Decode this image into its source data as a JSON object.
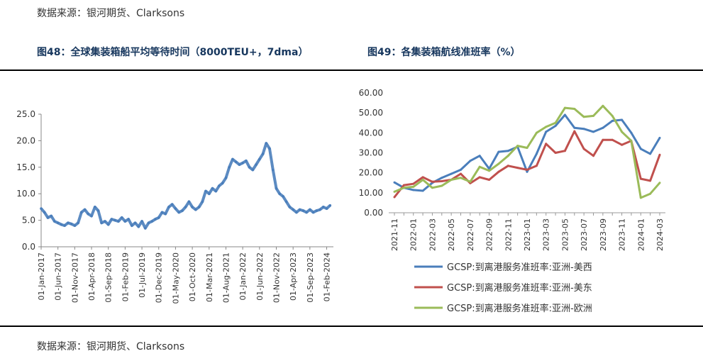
{
  "source_top": "数据来源：银河期货、Clarksons",
  "source_bottom": "数据来源：银河期货、Clarksons",
  "fig48": {
    "title": "图48：全球集装箱船平均等待时间（8000TEU+，7dma）"
  },
  "fig49": {
    "title": "图49：各集装箱航线准班率（%）"
  },
  "colors": {
    "title": "#17375e",
    "blue": "#4a7ebb",
    "red": "#c0504d",
    "green": "#9bbb59"
  },
  "chart_data": [
    {
      "type": "line",
      "title": "",
      "xlabel": "",
      "ylabel": "",
      "ylim": [
        0,
        25
      ],
      "yticks": [
        "0.0",
        "5.0",
        "10.0",
        "15.0",
        "20.0",
        "25.0"
      ],
      "xticks": [
        "01-Jan-2017",
        "01-Jun-2017",
        "01-Nov-2017",
        "01-Apr-2018",
        "01-Sep-2018",
        "01-Feb-2019",
        "01-Jul-2019",
        "01-Dec-2019",
        "01-May-2020",
        "01-Oct-2020",
        "01-Mar-2021",
        "01-Aug-2021",
        "01-Jan-2022",
        "01-Jun-2022",
        "01-Nov-2022",
        "01-Apr-2023",
        "01-Sep-2023",
        "01-Feb-2024"
      ],
      "grid": false,
      "series": [
        {
          "color": "#4a7ebb",
          "x": [
            "2017-01",
            "2017-02",
            "2017-03",
            "2017-04",
            "2017-05",
            "2017-06",
            "2017-07",
            "2017-08",
            "2017-09",
            "2017-10",
            "2017-11",
            "2017-12",
            "2018-01",
            "2018-02",
            "2018-03",
            "2018-04",
            "2018-05",
            "2018-06",
            "2018-07",
            "2018-08",
            "2018-09",
            "2018-10",
            "2018-11",
            "2018-12",
            "2019-01",
            "2019-02",
            "2019-03",
            "2019-04",
            "2019-05",
            "2019-06",
            "2019-07",
            "2019-08",
            "2019-09",
            "2019-10",
            "2019-11",
            "2019-12",
            "2020-01",
            "2020-02",
            "2020-03",
            "2020-04",
            "2020-05",
            "2020-06",
            "2020-07",
            "2020-08",
            "2020-09",
            "2020-10",
            "2020-11",
            "2020-12",
            "2021-01",
            "2021-02",
            "2021-03",
            "2021-04",
            "2021-05",
            "2021-06",
            "2021-07",
            "2021-08",
            "2021-09",
            "2021-10",
            "2021-11",
            "2021-12",
            "2022-01",
            "2022-02",
            "2022-03",
            "2022-04",
            "2022-05",
            "2022-06",
            "2022-07",
            "2022-08",
            "2022-09",
            "2022-10",
            "2022-11",
            "2022-12",
            "2023-01",
            "2023-02",
            "2023-03",
            "2023-04",
            "2023-05",
            "2023-06",
            "2023-07",
            "2023-08",
            "2023-09",
            "2023-10",
            "2023-11",
            "2023-12",
            "2024-01",
            "2024-02",
            "2024-03"
          ],
          "values": [
            7.2,
            6.5,
            5.5,
            5.8,
            4.8,
            4.5,
            4.2,
            4.0,
            4.5,
            4.3,
            4.0,
            4.5,
            6.5,
            7.0,
            6.2,
            5.8,
            7.5,
            6.8,
            4.5,
            4.8,
            4.2,
            5.2,
            5.0,
            4.8,
            5.5,
            4.8,
            5.2,
            4.0,
            4.5,
            3.8,
            4.8,
            3.5,
            4.5,
            4.8,
            5.2,
            5.5,
            6.5,
            6.2,
            7.5,
            8.0,
            7.2,
            6.5,
            6.8,
            7.5,
            8.5,
            7.5,
            7.0,
            7.5,
            8.5,
            10.5,
            10.0,
            11.0,
            10.5,
            11.5,
            12.0,
            13.0,
            15.0,
            16.5,
            16.0,
            15.5,
            15.8,
            16.2,
            15.0,
            14.5,
            15.5,
            16.5,
            17.5,
            19.5,
            18.5,
            14.5,
            11.0,
            10.0,
            9.5,
            8.5,
            7.5,
            7.0,
            6.5,
            7.0,
            6.8,
            6.5,
            7.0,
            6.5,
            6.8,
            7.0,
            7.5,
            7.2,
            7.8
          ]
        }
      ]
    },
    {
      "type": "line",
      "title": "",
      "xlabel": "",
      "ylabel": "",
      "ylim": [
        0,
        60
      ],
      "yticks": [
        "0.00",
        "10.00",
        "20.00",
        "30.00",
        "40.00",
        "50.00",
        "60.00"
      ],
      "categories": [
        "2021-11",
        "2021-12",
        "2022-01",
        "2022-02",
        "2022-03",
        "2022-04",
        "2022-05",
        "2022-06",
        "2022-07",
        "2022-08",
        "2022-09",
        "2022-10",
        "2022-11",
        "2022-12",
        "2023-01",
        "2023-02",
        "2023-03",
        "2023-04",
        "2023-05",
        "2023-06",
        "2023-07",
        "2023-08",
        "2023-09",
        "2023-10",
        "2023-11",
        "2023-12",
        "2024-01",
        "2024-02",
        "2024-03"
      ],
      "xtick_labels": [
        "2021-11",
        "2022-01",
        "2022-03",
        "2022-05",
        "2022-07",
        "2022-09",
        "2022-11",
        "2023-01",
        "2023-03",
        "2023-05",
        "2023-07",
        "2023-09",
        "2023-11",
        "2024-01",
        "2024-03"
      ],
      "grid": false,
      "legend": "bottom",
      "series": [
        {
          "name": "GCSP:到离港服务准班率:亚洲-美西",
          "color": "#4a7ebb",
          "values": [
            15.2,
            12.5,
            11.4,
            11.0,
            15.0,
            17.5,
            19.5,
            21.5,
            26.0,
            28.5,
            22.0,
            30.5,
            31.0,
            33.0,
            20.5,
            29.5,
            40.5,
            43.5,
            49.0,
            42.5,
            42.0,
            40.5,
            42.5,
            46.0,
            46.5,
            40.0,
            32.0,
            29.5,
            37.5
          ]
        },
        {
          "name": "GCSP:到离港服务准班率:亚洲-美东",
          "color": "#c0504d",
          "values": [
            7.8,
            13.8,
            14.5,
            17.8,
            15.5,
            15.8,
            16.5,
            19.5,
            14.8,
            17.8,
            16.5,
            20.5,
            23.5,
            22.5,
            21.5,
            23.5,
            34.5,
            30.0,
            31.0,
            40.8,
            32.0,
            28.5,
            36.5,
            36.5,
            34.0,
            36.0,
            17.0,
            16.0,
            29.0
          ]
        },
        {
          "name": "GCSP:到离港服务准班率:亚洲-欧洲",
          "color": "#9bbb59",
          "values": [
            10.5,
            12.5,
            13.0,
            16.5,
            12.5,
            13.5,
            16.5,
            17.5,
            15.5,
            23.0,
            21.0,
            24.5,
            28.5,
            33.5,
            32.5,
            40.0,
            43.0,
            45.0,
            52.5,
            52.0,
            48.0,
            48.5,
            53.5,
            48.5,
            40.5,
            36.0,
            7.5,
            9.5,
            15.0
          ]
        }
      ]
    }
  ]
}
